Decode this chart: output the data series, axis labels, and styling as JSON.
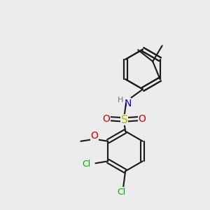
{
  "bg_color": "#ececec",
  "bond_color": "#1a1a1a",
  "bond_width": 1.5,
  "atom_colors": {
    "N": "#0000cc",
    "O": "#cc0000",
    "S": "#b8b800",
    "Cl": "#00aa00",
    "C": "#1a1a1a",
    "H": "#5a7a7a"
  },
  "font_size": 9,
  "label_font_size": 9
}
